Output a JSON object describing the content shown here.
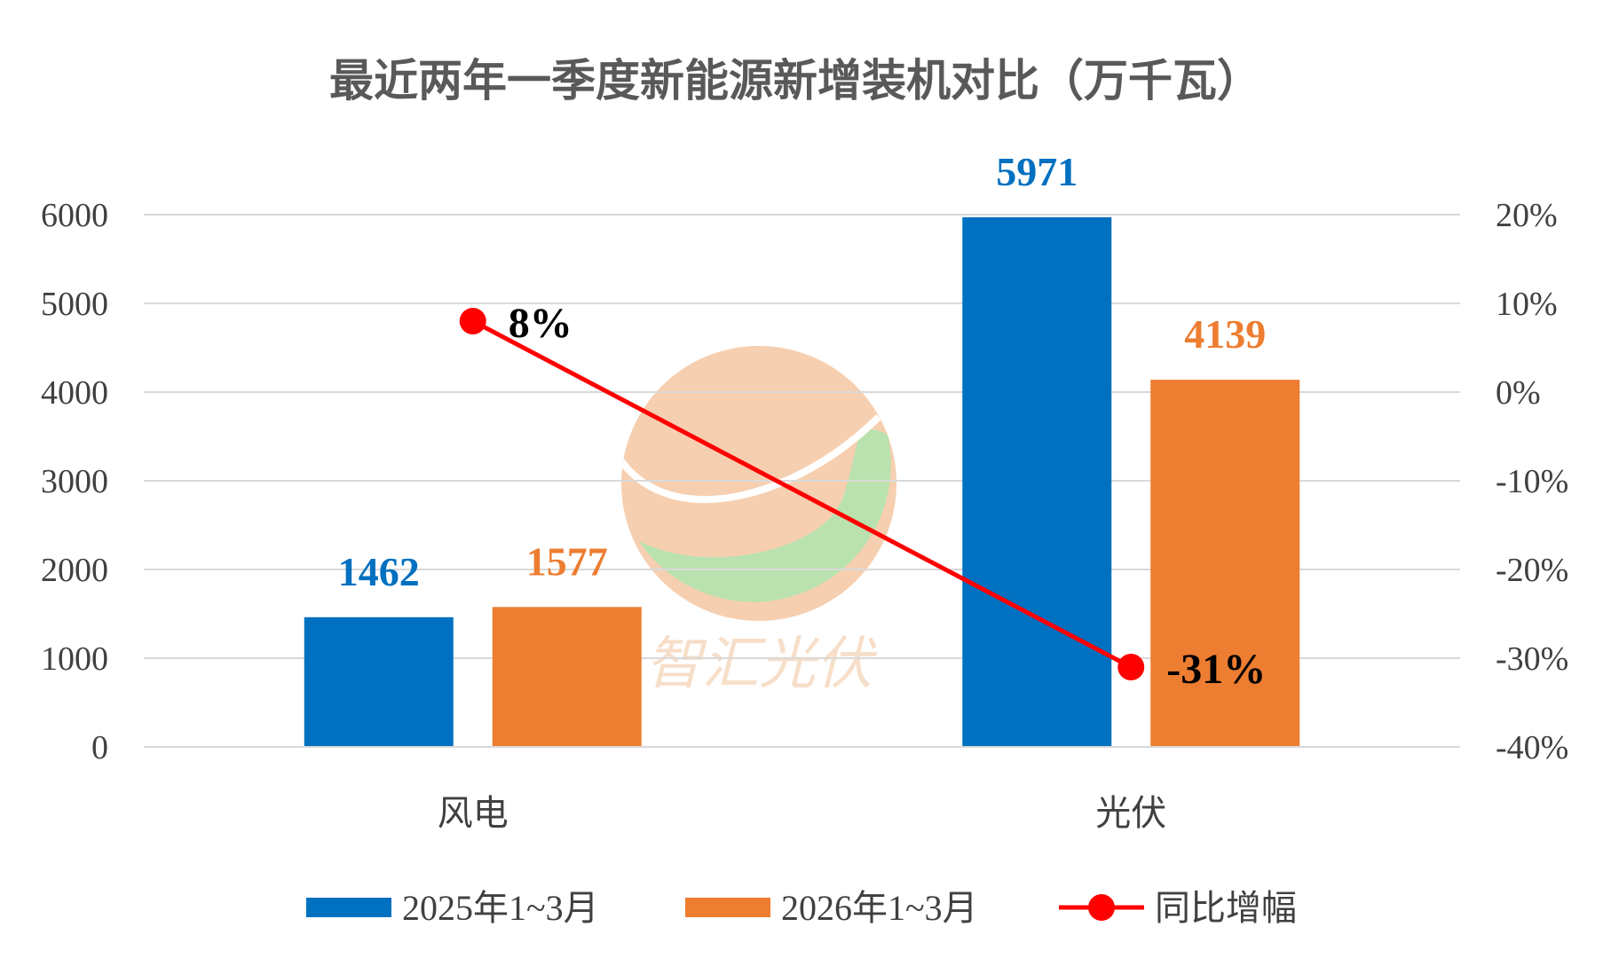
{
  "chart_data": {
    "type": "bar",
    "title": "最近两年一季度新能源新增装机对比（万千瓦）",
    "categories": [
      "风电",
      "光伏"
    ],
    "series": [
      {
        "name": "2025年1~3月",
        "kind": "bar",
        "axis": "left",
        "color": "#0070c0",
        "values": [
          1462,
          5971
        ],
        "labels": [
          "1462",
          "5971"
        ]
      },
      {
        "name": "2026年1~3月",
        "kind": "bar",
        "axis": "left",
        "color": "#ed7d31",
        "values": [
          1577,
          4139
        ],
        "labels": [
          "1577",
          "4139"
        ]
      },
      {
        "name": "同比增幅",
        "kind": "line",
        "axis": "right",
        "color": "#ff0000",
        "values": [
          0.08,
          -0.31
        ],
        "labels": [
          "8%",
          "-31%"
        ]
      }
    ],
    "ylim": [
      0,
      6000
    ],
    "yticks": [
      "0",
      "1000",
      "2000",
      "3000",
      "4000",
      "5000",
      "6000"
    ],
    "y2lim": [
      -0.4,
      0.2
    ],
    "y2ticks": [
      "-40%",
      "-30%",
      "-20%",
      "-10%",
      "0%",
      "10%",
      "20%"
    ],
    "grid": true,
    "legend_position": "bottom"
  },
  "watermark": {
    "text": "智汇光伏"
  }
}
